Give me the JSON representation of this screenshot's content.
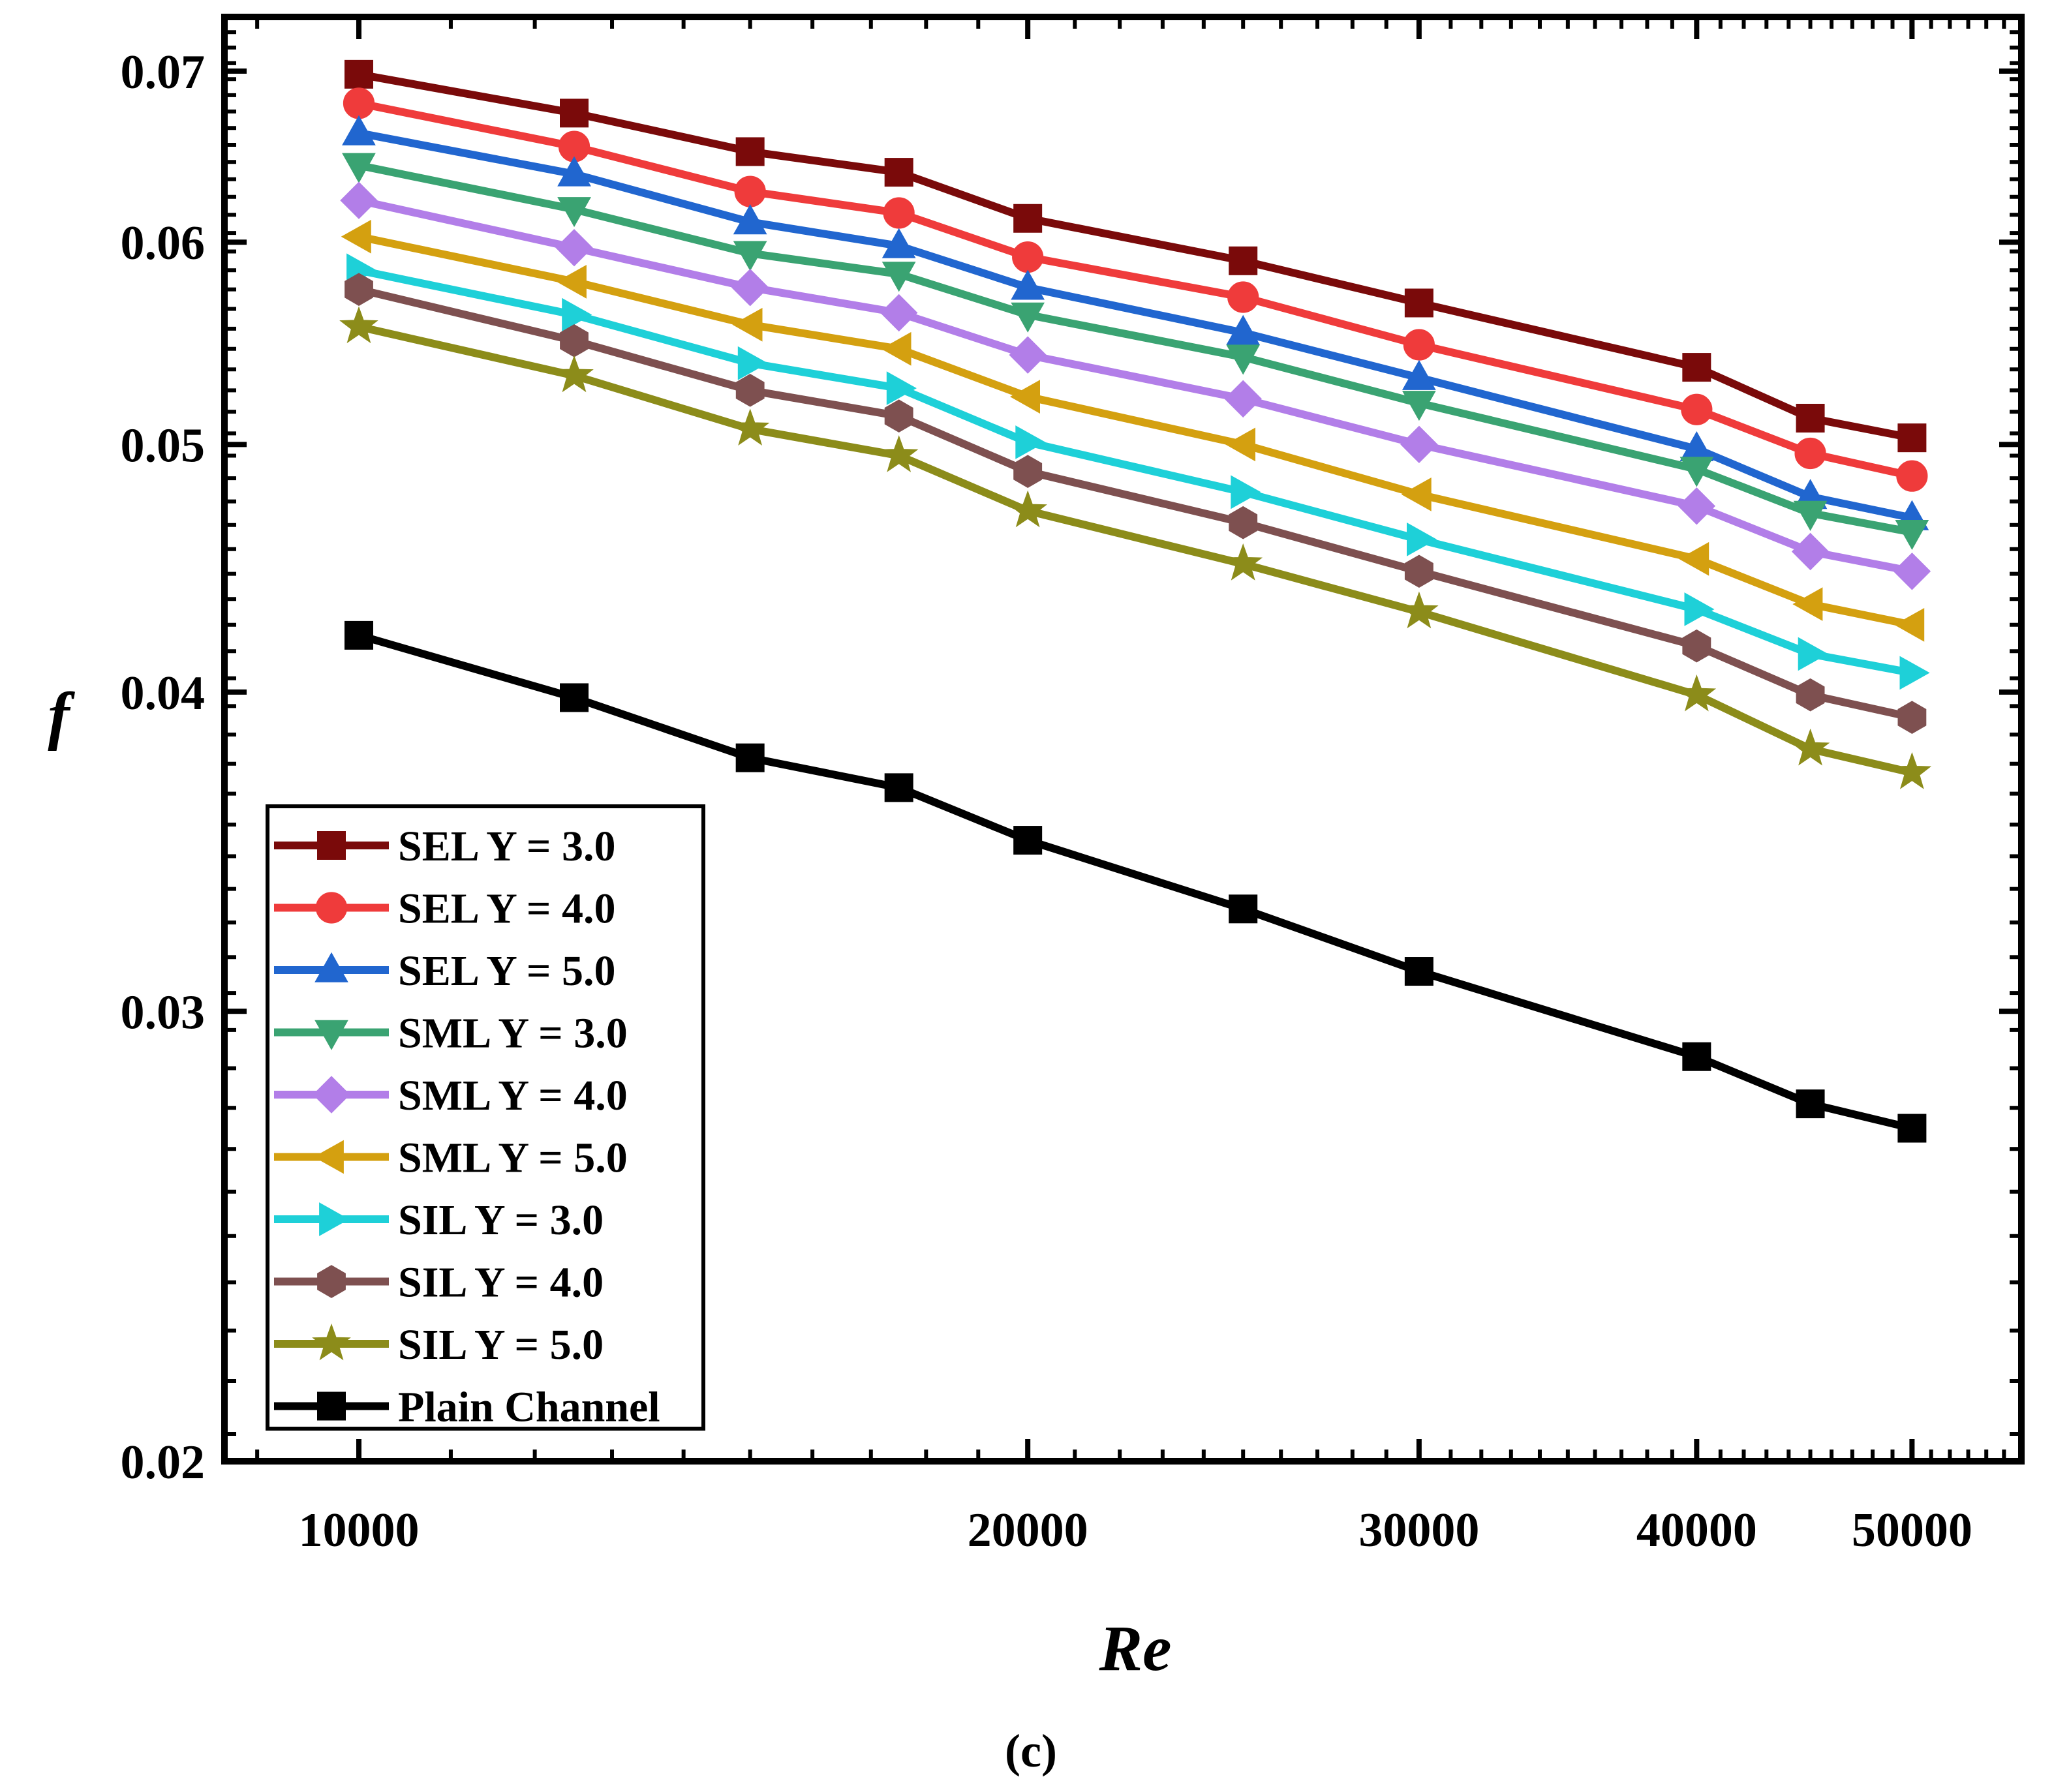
{
  "chart_data": {
    "type": "line",
    "title": "",
    "xlabel": "Re",
    "ylabel": "f",
    "xscale": "log",
    "yscale": "log",
    "xlim": [
      8700,
      56000
    ],
    "ylim": [
      0.02,
      0.0735
    ],
    "xticks": [
      10000,
      20000,
      30000,
      40000,
      50000
    ],
    "xtick_labels": [
      "10000",
      "20000",
      "30000",
      "40000",
      "50000"
    ],
    "yticks": [
      0.02,
      0.03,
      0.04,
      0.05,
      0.06,
      0.07
    ],
    "ytick_labels": [
      "0.02",
      "0.03",
      "0.04",
      "0.05",
      "0.06",
      "0.07"
    ],
    "x": [
      10000,
      12500,
      15000,
      17500,
      20000,
      25000,
      30000,
      40000,
      45000,
      50000
    ],
    "legend_position": "bottom-left",
    "caption": "(c)",
    "series": [
      {
        "name": "SEL Y = 3.0",
        "marker": "square",
        "color": "#7a0a0a",
        "values": [
          0.0698,
          0.0674,
          0.0651,
          0.0639,
          0.0613,
          0.059,
          0.0568,
          0.0536,
          0.0512,
          0.0503
        ]
      },
      {
        "name": "SEL Y = 4.0",
        "marker": "circle",
        "color": "#ef3b3b",
        "values": [
          0.068,
          0.0654,
          0.0628,
          0.0616,
          0.0592,
          0.0571,
          0.0547,
          0.0516,
          0.0496,
          0.0486
        ]
      },
      {
        "name": "SEL Y = 5.0",
        "marker": "triangle-up",
        "color": "#2166cf",
        "values": [
          0.0662,
          0.0638,
          0.0611,
          0.0598,
          0.0576,
          0.0553,
          0.0531,
          0.0498,
          0.0477,
          0.0468
        ]
      },
      {
        "name": "SML Y = 3.0",
        "marker": "triangle-down",
        "color": "#3aa372",
        "values": [
          0.0643,
          0.0618,
          0.0594,
          0.0583,
          0.0562,
          0.0541,
          0.0519,
          0.0489,
          0.047,
          0.0462
        ]
      },
      {
        "name": "SML Y = 4.0",
        "marker": "diamond",
        "color": "#b27ee8",
        "values": [
          0.0623,
          0.0597,
          0.0576,
          0.0563,
          0.0542,
          0.0521,
          0.05,
          0.0473,
          0.0454,
          0.0446
        ]
      },
      {
        "name": "SML Y = 5.0",
        "marker": "triangle-left",
        "color": "#d4a010",
        "values": [
          0.0603,
          0.0579,
          0.0557,
          0.0545,
          0.0522,
          0.05,
          0.0478,
          0.0451,
          0.0433,
          0.0425
        ]
      },
      {
        "name": "SIL Y = 3.0",
        "marker": "triangle-right",
        "color": "#1ed0d8",
        "values": [
          0.0585,
          0.0562,
          0.0538,
          0.0526,
          0.0501,
          0.0479,
          0.0459,
          0.0431,
          0.0414,
          0.0407
        ]
      },
      {
        "name": "SIL Y = 4.0",
        "marker": "hexagon",
        "color": "#7e5050",
        "values": [
          0.0575,
          0.0549,
          0.0525,
          0.0513,
          0.0488,
          0.0466,
          0.0446,
          0.0417,
          0.0399,
          0.0391
        ]
      },
      {
        "name": "SIL Y = 5.0",
        "marker": "star",
        "color": "#8c8c1a",
        "values": [
          0.0556,
          0.0532,
          0.0507,
          0.0495,
          0.0471,
          0.0449,
          0.043,
          0.0399,
          0.038,
          0.0372
        ]
      },
      {
        "name": "Plain Channel",
        "marker": "square",
        "color": "#000000",
        "values": [
          0.0421,
          0.0398,
          0.0377,
          0.0367,
          0.035,
          0.0329,
          0.0311,
          0.0288,
          0.0276,
          0.027
        ]
      }
    ]
  }
}
